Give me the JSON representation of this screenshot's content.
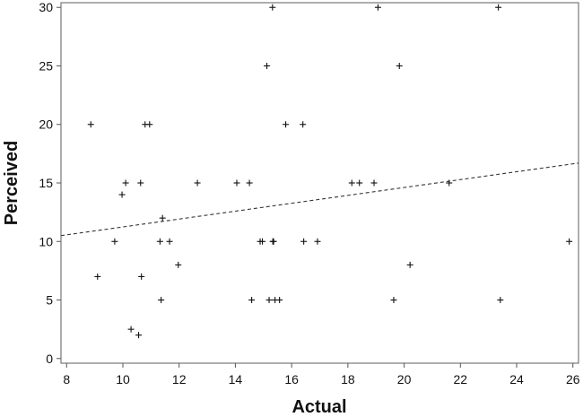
{
  "chart_data": {
    "type": "scatter",
    "title": "",
    "xlabel": "Actual",
    "ylabel": "Perceived",
    "xlim": [
      7.8,
      26.2
    ],
    "ylim": [
      -0.4,
      30.4
    ],
    "xticks": [
      "8",
      "10",
      "12",
      "14",
      "16",
      "18",
      "20",
      "22",
      "24",
      "26"
    ],
    "yticks": [
      "0",
      "5",
      "10",
      "15",
      "20",
      "25",
      "30"
    ],
    "grid": false,
    "marker": "plus",
    "points": [
      [
        8.86,
        20
      ],
      [
        10.79,
        20
      ],
      [
        10.95,
        20
      ],
      [
        15.79,
        20
      ],
      [
        16.4,
        20
      ],
      [
        10.1,
        15
      ],
      [
        10.63,
        15
      ],
      [
        12.65,
        15
      ],
      [
        14.05,
        15
      ],
      [
        14.5,
        15
      ],
      [
        18.14,
        15
      ],
      [
        18.41,
        15
      ],
      [
        18.93,
        15
      ],
      [
        21.6,
        15
      ],
      [
        9.97,
        14
      ],
      [
        11.41,
        12
      ],
      [
        9.71,
        10
      ],
      [
        11.32,
        10
      ],
      [
        11.66,
        10
      ],
      [
        14.88,
        10
      ],
      [
        14.96,
        10
      ],
      [
        15.33,
        10
      ],
      [
        15.36,
        10
      ],
      [
        16.43,
        10
      ],
      [
        16.92,
        10
      ],
      [
        25.87,
        10
      ],
      [
        9.1,
        7
      ],
      [
        10.66,
        7
      ],
      [
        11.97,
        8
      ],
      [
        20.21,
        8
      ],
      [
        11.36,
        5
      ],
      [
        14.58,
        5
      ],
      [
        15.2,
        5
      ],
      [
        15.41,
        5
      ],
      [
        15.57,
        5
      ],
      [
        19.63,
        5
      ],
      [
        23.42,
        5
      ],
      [
        10.29,
        2.5
      ],
      [
        10.56,
        2
      ],
      [
        15.32,
        30
      ],
      [
        19.07,
        30
      ],
      [
        23.35,
        30
      ],
      [
        15.12,
        25
      ],
      [
        19.83,
        25
      ]
    ],
    "trend_line": {
      "style": "dashed",
      "points": [
        [
          7.8,
          10.5
        ],
        [
          26.2,
          16.7
        ]
      ]
    },
    "colors": {
      "marks": "#111111",
      "trend": "#333333",
      "axis": "#555555"
    }
  }
}
